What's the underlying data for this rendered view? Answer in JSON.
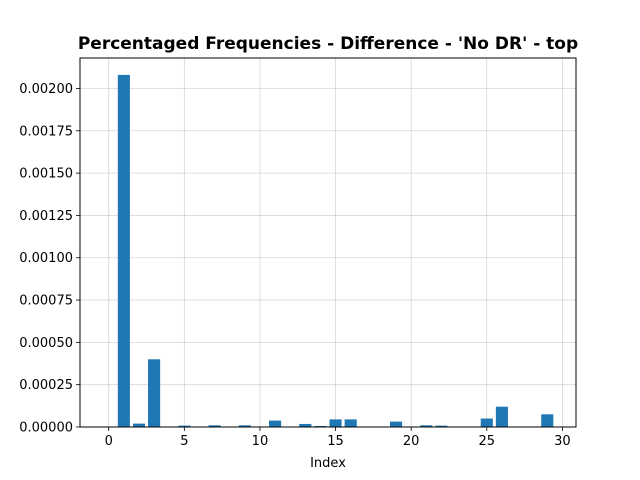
{
  "chart_data": {
    "type": "bar",
    "title": "Percentaged Frequencies - Difference - 'No DR' - top",
    "xlabel": "Index",
    "ylabel": "",
    "x": [
      1,
      2,
      3,
      5,
      7,
      9,
      11,
      13,
      14,
      15,
      16,
      19,
      21,
      22,
      25,
      26,
      29
    ],
    "values": [
      0.00208,
      2e-05,
      0.0004,
      8e-06,
      1e-05,
      1e-05,
      3.8e-05,
      1.8e-05,
      6e-06,
      4.5e-05,
      4.5e-05,
      3.2e-05,
      1e-05,
      8e-06,
      5e-05,
      0.00012,
      7.5e-05
    ],
    "xlim": [
      -1.9,
      30.9
    ],
    "ylim": [
      0,
      0.00218
    ],
    "xticks": [
      0,
      5,
      10,
      15,
      20,
      25,
      30
    ],
    "xtick_labels": [
      "0",
      "5",
      "10",
      "15",
      "20",
      "25",
      "30"
    ],
    "yticks": [
      0,
      0.00025,
      0.0005,
      0.00075,
      0.001,
      0.00125,
      0.0015,
      0.00175,
      0.002
    ],
    "ytick_labels": [
      "0.00000",
      "0.00025",
      "0.00050",
      "0.00075",
      "0.00100",
      "0.00125",
      "0.00150",
      "0.00175",
      "0.00200"
    ],
    "grid": true,
    "bar_color": "#1f77b4"
  }
}
